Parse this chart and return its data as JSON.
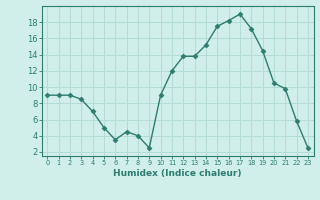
{
  "x": [
    0,
    1,
    2,
    3,
    4,
    5,
    6,
    7,
    8,
    9,
    10,
    11,
    12,
    13,
    14,
    15,
    16,
    17,
    18,
    19,
    20,
    21,
    22,
    23
  ],
  "y": [
    9,
    9,
    9,
    8.5,
    7,
    5,
    3.5,
    4.5,
    4,
    2.5,
    9,
    12,
    13.8,
    13.8,
    15.2,
    17.5,
    18.2,
    19,
    17.2,
    14.5,
    10.5,
    9.8,
    5.8,
    2.5
  ],
  "xlabel": "Humidex (Indice chaleur)",
  "line_color": "#2e7d6e",
  "marker_color": "#2e7d6e",
  "bg_color": "#d0eeea",
  "grid_color": "#b0d8d2",
  "ylim": [
    1.5,
    20
  ],
  "xlim": [
    -0.5,
    23.5
  ],
  "yticks": [
    2,
    4,
    6,
    8,
    10,
    12,
    14,
    16,
    18
  ],
  "xtick_labels": [
    "0",
    "1",
    "2",
    "3",
    "4",
    "5",
    "6",
    "7",
    "8",
    "9",
    "10",
    "11",
    "12",
    "13",
    "14",
    "15",
    "16",
    "17",
    "18",
    "19",
    "20",
    "21",
    "22",
    "23"
  ],
  "axis_label_color": "#2e7d6e",
  "tick_color": "#2e7d6e",
  "border_color": "#2e7d6e"
}
